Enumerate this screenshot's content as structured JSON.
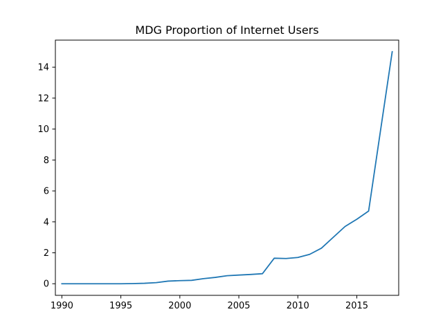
{
  "chart_data": {
    "type": "line",
    "title": "MDG Proportion of Internet Users",
    "xlabel": "",
    "ylabel": "",
    "xlim": [
      1989.45,
      2018.55
    ],
    "ylim": [
      -0.75,
      15.75
    ],
    "xticks": [
      1990,
      1995,
      2000,
      2005,
      2010,
      2015
    ],
    "yticks": [
      0,
      2,
      4,
      6,
      8,
      10,
      12,
      14
    ],
    "grid": false,
    "legend": "none",
    "series": [
      {
        "color": "#1f77b4",
        "x": [
          1990,
          1991,
          1992,
          1993,
          1994,
          1995,
          1996,
          1997,
          1998,
          1999,
          2000,
          2001,
          2002,
          2003,
          2004,
          2005,
          2006,
          2007,
          2008,
          2009,
          2010,
          2011,
          2012,
          2013,
          2014,
          2015,
          2016,
          2017,
          2018
        ],
        "y": [
          0,
          0,
          0,
          0,
          0,
          0,
          0.01,
          0.03,
          0.07,
          0.17,
          0.2,
          0.22,
          0.33,
          0.41,
          0.52,
          0.56,
          0.6,
          0.65,
          1.65,
          1.63,
          1.7,
          1.9,
          2.3,
          3.0,
          3.7,
          4.17,
          4.7,
          9.86,
          15.0
        ]
      }
    ]
  }
}
